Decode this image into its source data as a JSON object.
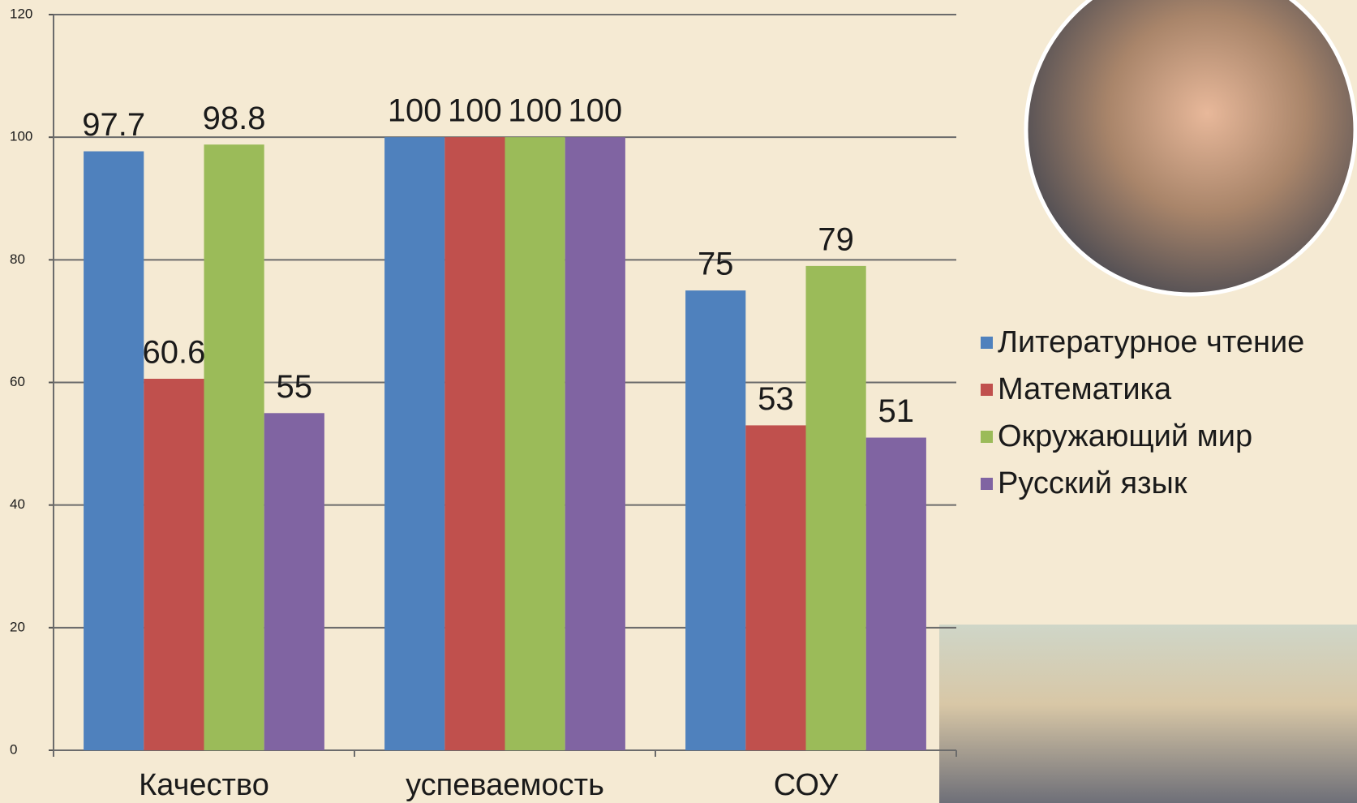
{
  "chart_data": {
    "type": "bar",
    "categories": [
      "Качество",
      "успеваемость",
      "СОУ"
    ],
    "series": [
      {
        "name": "Литературное чтение",
        "color": "#4f81bd",
        "values": [
          97.7,
          100,
          75
        ]
      },
      {
        "name": "Математика",
        "color": "#c0504d",
        "values": [
          60.6,
          100,
          53
        ]
      },
      {
        "name": "Окружающий мир",
        "color": "#9bbb59",
        "values": [
          98.8,
          100,
          79
        ]
      },
      {
        "name": "Русский язык",
        "color": "#8064a2",
        "values": [
          55,
          100,
          51
        ]
      }
    ],
    "ylim": [
      0,
      120
    ],
    "yticks": [
      0,
      20,
      40,
      60,
      80,
      100,
      120
    ],
    "grid": true,
    "legend": "right"
  }
}
